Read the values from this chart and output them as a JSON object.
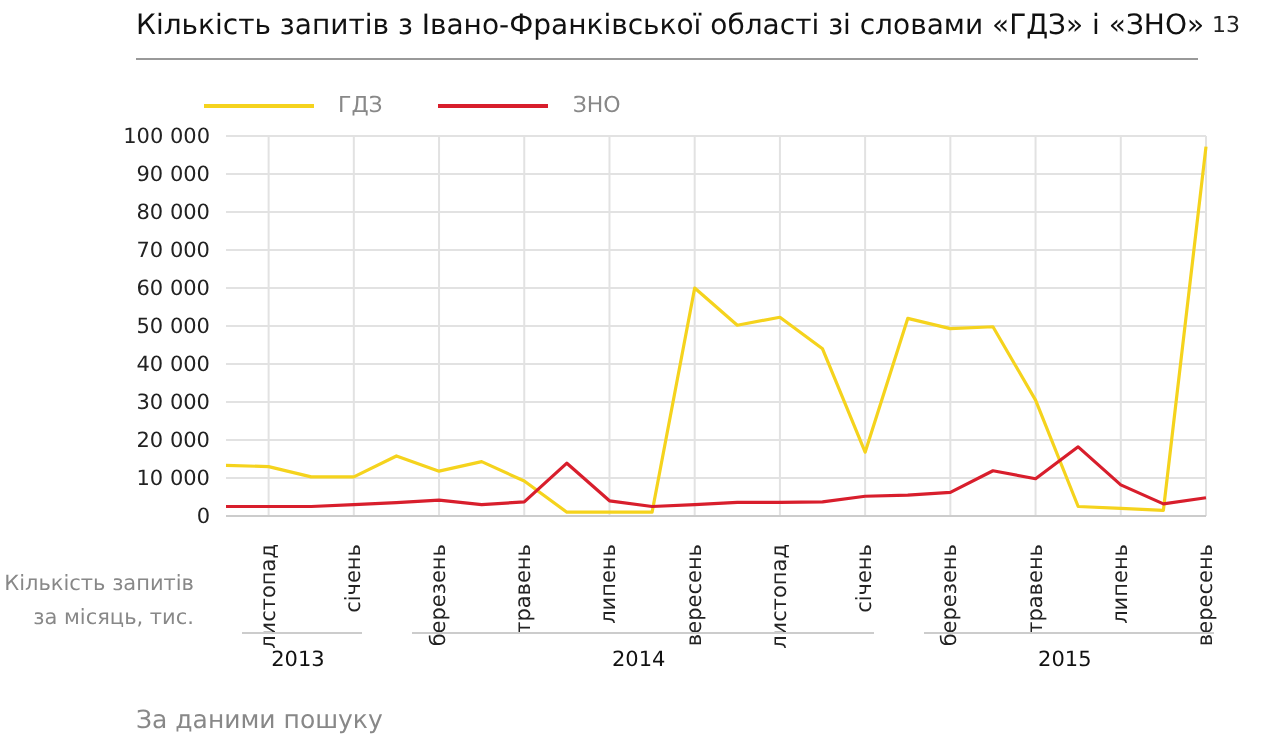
{
  "chart_data": {
    "type": "line",
    "title": "Кількість запитів з Івано-Франківської області зі словами «ГДЗ» і «ЗНО»",
    "ylabel": "Кількість запитів за місяць, тис.",
    "categories": [
      null,
      "листопад",
      null,
      "січень",
      null,
      "березень",
      null,
      "травень",
      null,
      "липень",
      null,
      "вересень",
      null,
      "листопад",
      null,
      "січень",
      null,
      "березень",
      null,
      "травень",
      null,
      "липень",
      null,
      "вересень"
    ],
    "series": [
      {
        "name": "ГДЗ",
        "color": "#f5d31d",
        "values": [
          13300,
          13000,
          10300,
          10300,
          15800,
          11800,
          14300,
          9200,
          1000,
          1000,
          1000,
          60000,
          50200,
          52300,
          44000,
          16800,
          52000,
          49300,
          49800,
          30500,
          2500,
          2000,
          1500,
          97200
        ]
      },
      {
        "name": "ЗНО",
        "color": "#d81e2c",
        "values": [
          2500,
          2500,
          2500,
          3000,
          3500,
          4200,
          3000,
          3700,
          13900,
          4000,
          2500,
          3000,
          3600,
          3600,
          3700,
          5200,
          5500,
          6200,
          11900,
          9800,
          18200,
          8200,
          3200,
          4800
        ]
      }
    ],
    "ylim": [
      0,
      100000
    ],
    "yticks": [
      0,
      10000,
      20000,
      30000,
      40000,
      50000,
      60000,
      70000,
      80000,
      90000,
      100000
    ],
    "grid": true,
    "legend": "top left",
    "marker": "none",
    "line_style": "solid",
    "annotations": [
      "13",
      "2013",
      "2014",
      "2015",
      "За даними пошуку"
    ]
  }
}
